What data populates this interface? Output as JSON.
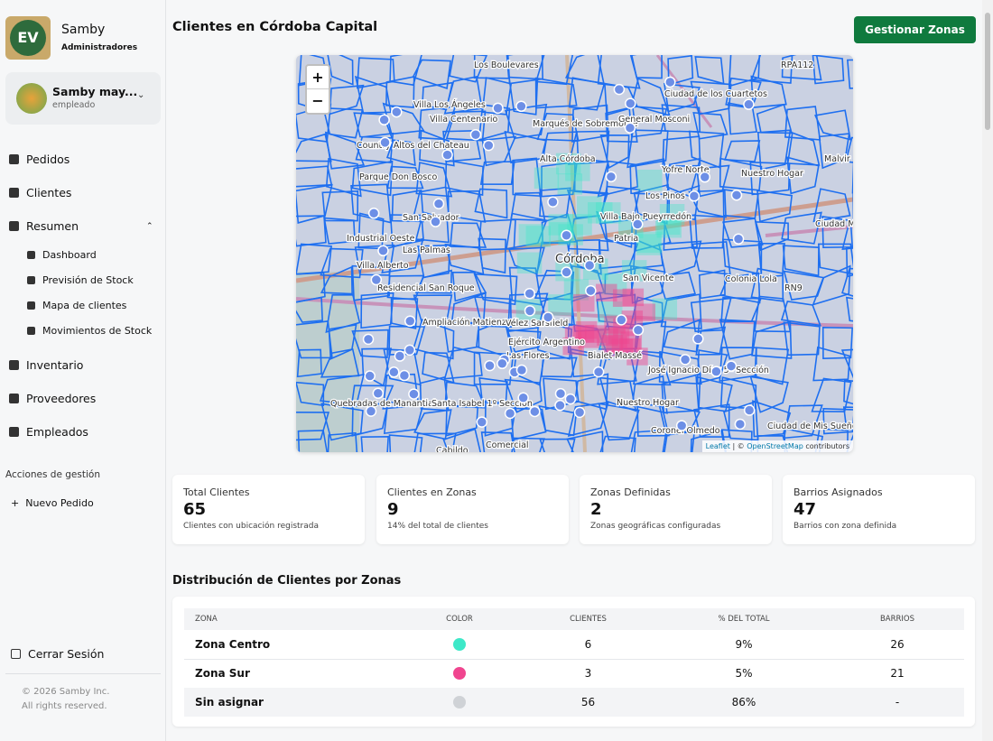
{
  "sidebar": {
    "logo": "EV",
    "brand": "Samby",
    "role": "Administradores",
    "user": {
      "name": "Samby may...",
      "role": "empleado"
    },
    "nav": [
      "Pedidos",
      "Clientes",
      "Resumen"
    ],
    "subnav": [
      "Dashboard",
      "Previsión de Stock",
      "Mapa de clientes",
      "Movimientos de Stock"
    ],
    "nav2": [
      "Inventario",
      "Proveedores",
      "Empleados"
    ],
    "actions_title": "Acciones de gestión",
    "actions": [
      "Nuevo Pedido"
    ],
    "logout": "Cerrar Sesión",
    "footer": [
      "© 2026 Samby Inc.",
      "All rights reserved."
    ]
  },
  "header": {
    "title": "Clientes en Córdoba Capital",
    "button": "Gestionar Zonas"
  },
  "map": {
    "zoom_in": "+",
    "zoom_out": "−",
    "attribution": {
      "leaflet": "Leaflet",
      "sep": "| ©",
      "osm": "OpenStreetMap",
      "rest": "contributors"
    },
    "labels": [
      "Los Boulevares",
      "Villa Los Ángeles",
      "Villa Centenario",
      "Marqués de Sobremonte",
      "Ciudad de los Cuartetos",
      "General Mosconi",
      "Country Altos del Chateau",
      "Alta Córdoba",
      "Parque Don Bosco",
      "Yofre Norte",
      "Nuestro Hogar",
      "Malvir",
      "Los Pinos",
      "San Salvador",
      "Villa Bajo Pueyrredón",
      "Ciudad Mi Barrio",
      "Industrial Oeste",
      "Patria",
      "Las Palmas",
      "Córdoba",
      "Villa Alberto",
      "San Vicente",
      "Colonia Lola",
      "RN9",
      "RPA112",
      "Residencial San Roque",
      "Ampliación Matienzo",
      "Vélez Sarsfield",
      "Ejército Argentino",
      "Las Flores",
      "Bialet Massé",
      "José Ignacio Díaz 5ª Sección",
      "Quebradas de Manantiales",
      "Santa Isabel 1º Sección",
      "Nuestro Hogar",
      "Ciudad de Mis Sueños",
      "Coronel Olmedo",
      "Comercial",
      "Cabildo"
    ]
  },
  "stats": [
    {
      "title": "Total Clientes",
      "value": 65,
      "note": "Clientes con ubicación registrada"
    },
    {
      "title": "Clientes en Zonas",
      "value": 9,
      "note": "14% del total de clientes"
    },
    {
      "title": "Zonas Definidas",
      "value": 2,
      "note": "Zonas geográficas configuradas"
    },
    {
      "title": "Barrios Asignados",
      "value": 47,
      "note": "Barrios con zona definida"
    }
  ],
  "table": {
    "title": "Distribución de Clientes por Zonas",
    "headers": [
      "ZONA",
      "COLOR",
      "CLIENTES",
      "% DEL TOTAL",
      "BARRIOS"
    ],
    "rows": [
      {
        "zone": "Zona Centro",
        "color": "#3ee8c8",
        "clients": "6",
        "share": "9%",
        "barrios": "26"
      },
      {
        "zone": "Zona Sur",
        "color": "#f0458f",
        "clients": "3",
        "share": "5%",
        "barrios": "21"
      },
      {
        "zone": "Sin asignar",
        "color": "#cfd2d6",
        "clients": "56",
        "share": "86%",
        "barrios": "-"
      }
    ]
  }
}
